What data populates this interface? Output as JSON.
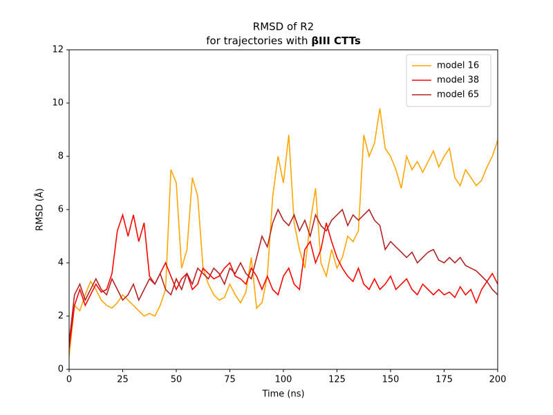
{
  "chart_data": {
    "type": "line",
    "title": "RMSD of R2",
    "subtitle": "for trajectories with",
    "subtitle_bold": "βIII CTTs",
    "xlabel": "Time (ns)",
    "ylabel": "RMSD (Å)",
    "x": [
      0,
      2.5,
      5,
      7.5,
      10,
      12.5,
      15,
      17.5,
      20,
      22.5,
      25,
      27.5,
      30,
      32.5,
      35,
      37.5,
      40,
      42.5,
      45,
      47.5,
      50,
      52.5,
      55,
      57.5,
      60,
      62.5,
      65,
      67.5,
      70,
      72.5,
      75,
      77.5,
      80,
      82.5,
      85,
      87.5,
      90,
      92.5,
      95,
      97.5,
      100,
      102.5,
      105,
      107.5,
      110,
      112.5,
      115,
      117.5,
      120,
      122.5,
      125,
      127.5,
      130,
      132.5,
      135,
      137.5,
      140,
      142.5,
      145,
      147.5,
      150,
      152.5,
      155,
      157.5,
      160,
      162.5,
      165,
      167.5,
      170,
      172.5,
      175,
      177.5,
      180,
      182.5,
      185,
      187.5,
      190,
      192.5,
      195,
      197.5,
      200
    ],
    "series": [
      {
        "name": "model 16",
        "color": "#ffa500",
        "values": [
          0.5,
          2.4,
          2.2,
          2.8,
          3.3,
          3.0,
          2.6,
          2.4,
          2.3,
          2.5,
          2.8,
          2.6,
          2.4,
          2.2,
          2.0,
          2.1,
          2.0,
          2.4,
          3.0,
          7.5,
          7.0,
          3.8,
          4.5,
          7.2,
          6.5,
          3.8,
          3.2,
          2.8,
          2.6,
          2.7,
          3.2,
          2.8,
          2.5,
          2.9,
          4.2,
          2.3,
          2.5,
          3.5,
          6.5,
          8.0,
          7.0,
          8.8,
          5.5,
          4.5,
          3.8,
          5.5,
          6.8,
          4.0,
          3.5,
          4.5,
          3.8,
          4.2,
          5.0,
          4.8,
          5.2,
          8.8,
          8.0,
          8.5,
          9.8,
          8.3,
          8.0,
          7.5,
          6.8,
          8.0,
          7.5,
          7.8,
          7.4,
          7.8,
          8.2,
          7.6,
          8.0,
          8.3,
          7.2,
          6.9,
          7.5,
          7.2,
          6.9,
          7.1,
          7.6,
          8.0,
          8.6
        ]
      },
      {
        "name": "model 38",
        "color": "#ff0000",
        "values": [
          0.8,
          2.4,
          3.0,
          2.4,
          2.8,
          3.2,
          2.9,
          3.0,
          3.6,
          5.2,
          5.8,
          5.0,
          5.8,
          4.8,
          5.5,
          3.5,
          3.2,
          3.6,
          4.0,
          3.5,
          3.0,
          3.4,
          3.6,
          3.0,
          3.2,
          3.8,
          3.6,
          3.4,
          3.5,
          3.8,
          4.0,
          3.5,
          3.4,
          3.2,
          3.8,
          3.5,
          3.0,
          3.5,
          3.0,
          2.8,
          3.5,
          3.8,
          3.2,
          3.0,
          4.5,
          4.8,
          4.0,
          4.5,
          5.5,
          4.8,
          4.2,
          3.8,
          3.5,
          3.3,
          3.8,
          3.2,
          3.0,
          3.4,
          3.0,
          3.2,
          3.5,
          3.0,
          3.2,
          3.4,
          3.0,
          2.8,
          3.2,
          3.0,
          2.8,
          3.0,
          2.8,
          2.9,
          2.7,
          3.1,
          2.8,
          3.0,
          2.5,
          3.0,
          3.3,
          3.6,
          3.2
        ]
      },
      {
        "name": "model 65",
        "color": "#b22222",
        "values": [
          1.0,
          2.8,
          3.2,
          2.6,
          3.0,
          3.4,
          3.0,
          2.8,
          3.4,
          3.0,
          2.6,
          2.8,
          3.2,
          2.6,
          3.0,
          3.4,
          3.2,
          3.6,
          3.0,
          2.8,
          3.4,
          3.0,
          3.6,
          3.2,
          3.8,
          3.6,
          3.4,
          3.8,
          3.6,
          3.2,
          3.8,
          3.6,
          4.0,
          3.6,
          3.4,
          4.2,
          5.0,
          4.6,
          5.5,
          6.0,
          5.6,
          5.4,
          5.8,
          5.2,
          5.6,
          5.0,
          5.8,
          5.4,
          5.2,
          5.6,
          5.8,
          6.0,
          5.4,
          5.8,
          5.6,
          5.8,
          6.0,
          5.6,
          5.4,
          4.5,
          4.8,
          4.6,
          4.4,
          4.2,
          4.4,
          4.0,
          4.2,
          4.4,
          4.5,
          4.1,
          4.0,
          4.2,
          4.0,
          4.2,
          3.9,
          3.8,
          3.7,
          3.5,
          3.3,
          3.0,
          2.8
        ]
      }
    ],
    "xlim": [
      0,
      200
    ],
    "xticks": [
      0,
      25,
      50,
      75,
      100,
      125,
      150,
      175,
      200
    ],
    "ylim": [
      0,
      12
    ],
    "yticks": [
      0,
      2,
      4,
      6,
      8,
      10,
      12
    ],
    "grid": false,
    "legend": "upper right"
  }
}
